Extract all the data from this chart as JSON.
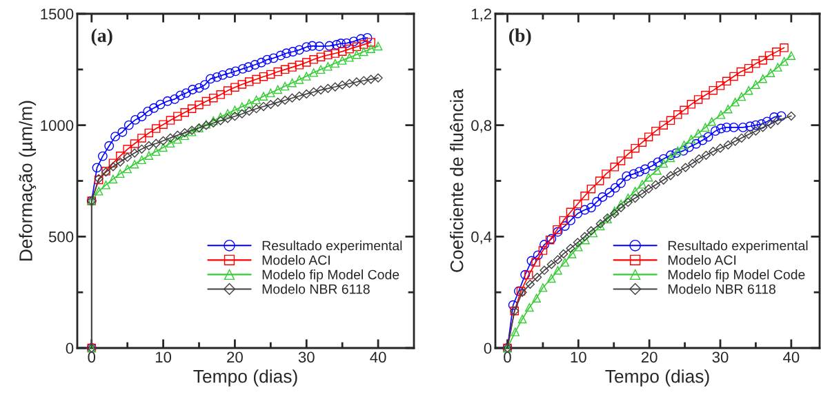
{
  "chart_data": [
    {
      "type": "line",
      "xlabel": "Tempo (dias)",
      "ylabel": "Deformação (µm/m)",
      "annotations": [
        "(a)"
      ],
      "xlim": [
        -2,
        45
      ],
      "ylim": [
        0,
        1500
      ],
      "xticks": [
        0,
        {
          "value": 5,
          "label": null
        },
        10,
        {
          "value": 15,
          "label": null
        },
        20,
        {
          "value": 25,
          "label": null
        },
        30,
        {
          "value": 35,
          "label": null
        },
        40
      ],
      "yticks": [
        0,
        {
          "value": 250,
          "label": null
        },
        500,
        {
          "value": 750,
          "label": null
        },
        1000,
        {
          "value": 1250,
          "label": null
        },
        1500
      ],
      "grid": false,
      "legend": "bottom right",
      "line_style": "solid",
      "series": [
        {
          "name": "Resultado experimental",
          "color": "#0000ff",
          "marker": "circle",
          "x": [
            0,
            0,
            0.75,
            1.55,
            2.45,
            3.3,
            4.3,
            5.2,
            6.1,
            7.0,
            7.85,
            8.7,
            9.6,
            10.6,
            11.6,
            12.4,
            13.2,
            14.1,
            15,
            15.8,
            16.6,
            17.5,
            18.3,
            19.3,
            20.1,
            21.1,
            21.9,
            22.8,
            23.7,
            24.5,
            25.4,
            26.4,
            27.2,
            28.1,
            29,
            30,
            30.8,
            31.8,
            33.2,
            34.2,
            34.8,
            35.6,
            36.6,
            37.6,
            38.5
          ],
          "values": [
            0,
            660,
            809,
            861,
            907,
            949,
            969,
            1000,
            1024,
            1039,
            1062,
            1077,
            1093,
            1108,
            1117,
            1134,
            1144,
            1160,
            1167,
            1181,
            1208,
            1216,
            1225,
            1234,
            1242,
            1253,
            1261,
            1271,
            1281,
            1294,
            1301,
            1313,
            1323,
            1330,
            1338,
            1351,
            1356,
            1354,
            1356,
            1361,
            1367,
            1368,
            1376,
            1387,
            1392
          ]
        },
        {
          "name": "Modelo ACI",
          "color": "#ff0000",
          "marker": "square",
          "x": [
            0,
            0,
            1,
            2,
            3,
            4,
            5,
            6,
            7,
            8,
            9,
            10,
            11,
            12,
            13,
            14,
            15,
            16,
            17,
            18,
            19,
            20,
            21,
            22,
            23,
            24,
            25,
            26,
            27,
            28,
            29,
            30,
            31,
            32,
            33,
            34,
            35,
            36,
            37,
            38,
            39
          ],
          "values": [
            0,
            660,
            755,
            794,
            830,
            862,
            892,
            917,
            942,
            965,
            985,
            1003,
            1022,
            1040,
            1057,
            1074,
            1091,
            1107,
            1122,
            1137,
            1155,
            1170,
            1183,
            1195,
            1206,
            1218,
            1228,
            1240,
            1250,
            1260,
            1270,
            1282,
            1295,
            1306,
            1315,
            1322,
            1331,
            1342,
            1352,
            1362,
            1372
          ]
        },
        {
          "name": "Modelo fip Model Code",
          "color": "#33cc33",
          "marker": "triangle",
          "x": [
            0,
            0,
            1,
            2,
            3,
            4,
            5,
            6,
            7,
            8,
            9,
            10,
            11,
            12,
            13,
            14,
            15,
            16,
            17,
            18,
            19,
            20,
            21,
            22,
            23,
            24,
            25,
            26,
            27,
            28,
            29,
            30,
            31,
            32,
            33,
            34,
            35,
            36,
            37,
            38,
            39,
            40
          ],
          "values": [
            0,
            660,
            704,
            732,
            758,
            783,
            804,
            825,
            845,
            864,
            882,
            900,
            919,
            936,
            953,
            970,
            987,
            1004,
            1020,
            1037,
            1053,
            1068,
            1083,
            1098,
            1114,
            1130,
            1145,
            1160,
            1175,
            1190,
            1205,
            1220,
            1236,
            1250,
            1264,
            1278,
            1291,
            1304,
            1317,
            1330,
            1343,
            1355
          ]
        },
        {
          "name": "Modelo NBR 6118",
          "color": "#404040",
          "marker": "diamond",
          "x": [
            0,
            0,
            1,
            2,
            3,
            4,
            5,
            6,
            7,
            8,
            9,
            10,
            11,
            12,
            13,
            14,
            15,
            16,
            17,
            18,
            19,
            20,
            21,
            22,
            23,
            24,
            25,
            26,
            27,
            28,
            29,
            30,
            31,
            32,
            33,
            34,
            35,
            36,
            37,
            38,
            39,
            40
          ],
          "values": [
            0,
            660,
            760,
            790,
            814,
            835,
            856,
            875,
            893,
            908,
            918,
            930,
            943,
            955,
            966,
            977,
            988,
            999,
            1010,
            1020,
            1030,
            1040,
            1051,
            1063,
            1074,
            1084,
            1093,
            1103,
            1112,
            1122,
            1131,
            1140,
            1149,
            1158,
            1165,
            1172,
            1180,
            1187,
            1194,
            1200,
            1206,
            1212
          ]
        }
      ]
    },
    {
      "type": "line",
      "xlabel": "Tempo (dias)",
      "ylabel": "Coeficiente de fluência",
      "annotations": [
        "(b)"
      ],
      "xlim": [
        -1.7,
        44
      ],
      "ylim": [
        0,
        1.2
      ],
      "xticks": [
        0,
        {
          "value": 5,
          "label": null
        },
        10,
        {
          "value": 15,
          "label": null
        },
        20,
        {
          "value": 25,
          "label": null
        },
        30,
        {
          "value": 35,
          "label": null
        },
        40
      ],
      "yticks": [
        0,
        {
          "value": 0.2,
          "label": null
        },
        {
          "value": 0.4,
          "label": "0,4"
        },
        {
          "value": 0.6,
          "label": null
        },
        {
          "value": 0.8,
          "label": "0,8"
        },
        {
          "value": 1.0,
          "label": null
        },
        {
          "value": 1.2,
          "label": "1,2"
        }
      ],
      "grid": false,
      "legend": "bottom right",
      "line_style": "solid",
      "series": [
        {
          "name": "Resultado experimental",
          "color": "#0000ff",
          "marker": "circle",
          "x": [
            0,
            0.8,
            1.6,
            2.5,
            3.4,
            4.3,
            5.2,
            6.2,
            7.1,
            8.1,
            8.9,
            9.9,
            10.9,
            11.8,
            12.6,
            13.4,
            14.4,
            15.2,
            16,
            16.8,
            17.8,
            18.6,
            19.4,
            20.4,
            21.2,
            22,
            23,
            23.8,
            24.8,
            25.6,
            26.6,
            27.5,
            28.3,
            29.3,
            30.1,
            30.9,
            31.9,
            33.2,
            34.2,
            35,
            35.8,
            36.6,
            37.6,
            38.6
          ],
          "values": [
            0,
            0.154,
            0.204,
            0.263,
            0.313,
            0.333,
            0.371,
            0.392,
            0.417,
            0.438,
            0.458,
            0.483,
            0.496,
            0.504,
            0.525,
            0.542,
            0.558,
            0.575,
            0.592,
            0.617,
            0.625,
            0.633,
            0.642,
            0.654,
            0.667,
            0.679,
            0.692,
            0.7,
            0.708,
            0.721,
            0.733,
            0.746,
            0.758,
            0.779,
            0.788,
            0.792,
            0.792,
            0.792,
            0.796,
            0.8,
            0.804,
            0.813,
            0.829,
            0.833
          ]
        },
        {
          "name": "Modelo ACI",
          "color": "#ff0000",
          "marker": "square",
          "x": [
            0,
            1,
            1.9,
            3,
            4,
            5,
            6,
            7,
            7.9,
            8.9,
            9.9,
            10.9,
            11.8,
            13,
            13.9,
            15.1,
            16,
            17,
            18,
            19,
            19.9,
            20.9,
            22,
            23,
            24,
            24.9,
            25.9,
            26.9,
            27.9,
            29,
            30,
            30.9,
            31.9,
            32.9,
            34,
            35,
            36,
            36.9,
            37.9,
            39
          ],
          "values": [
            0,
            0.133,
            0.204,
            0.262,
            0.308,
            0.35,
            0.388,
            0.425,
            0.458,
            0.488,
            0.517,
            0.546,
            0.571,
            0.6,
            0.625,
            0.65,
            0.672,
            0.696,
            0.717,
            0.738,
            0.758,
            0.779,
            0.8,
            0.817,
            0.838,
            0.854,
            0.875,
            0.892,
            0.908,
            0.925,
            0.942,
            0.958,
            0.975,
            0.992,
            1.004,
            1.021,
            1.033,
            1.05,
            1.063,
            1.078
          ]
        },
        {
          "name": "Modelo fip Model Code",
          "color": "#33cc33",
          "marker": "triangle",
          "x": [
            0,
            1.1,
            2.1,
            3.1,
            4.1,
            5,
            6.2,
            7.1,
            8.1,
            9.1,
            10,
            11,
            12.1,
            13.1,
            14.1,
            15.1,
            16,
            17,
            18,
            19,
            19.9,
            21.1,
            22,
            23,
            24,
            24.9,
            25.9,
            26.9,
            27.9,
            28.8,
            30.1,
            31.1,
            32.1,
            33,
            34,
            35,
            36,
            37.1,
            38.1,
            39,
            40
          ],
          "values": [
            0,
            0.058,
            0.104,
            0.146,
            0.179,
            0.217,
            0.25,
            0.279,
            0.308,
            0.338,
            0.363,
            0.388,
            0.413,
            0.438,
            0.463,
            0.492,
            0.517,
            0.539,
            0.563,
            0.588,
            0.613,
            0.638,
            0.663,
            0.683,
            0.708,
            0.729,
            0.75,
            0.771,
            0.792,
            0.813,
            0.838,
            0.858,
            0.883,
            0.903,
            0.925,
            0.946,
            0.967,
            0.988,
            1.008,
            1.029,
            1.05
          ]
        },
        {
          "name": "Modelo NBR 6118",
          "color": "#404040",
          "marker": "diamond",
          "x": [
            0,
            1,
            2.1,
            3.2,
            4.2,
            5.2,
            6.2,
            7.1,
            7.9,
            8.9,
            9.9,
            10.9,
            11.8,
            13.1,
            14.1,
            15.1,
            16,
            17,
            18,
            19,
            19.9,
            20.9,
            22,
            23,
            24,
            25.1,
            26.1,
            27,
            28,
            29,
            30,
            31.1,
            32.1,
            33,
            34,
            35,
            36,
            37.1,
            38.1,
            40
          ],
          "values": [
            0,
            0.133,
            0.2,
            0.229,
            0.254,
            0.279,
            0.3,
            0.317,
            0.338,
            0.358,
            0.379,
            0.4,
            0.421,
            0.446,
            0.467,
            0.483,
            0.504,
            0.523,
            0.538,
            0.554,
            0.571,
            0.586,
            0.603,
            0.619,
            0.633,
            0.648,
            0.663,
            0.679,
            0.692,
            0.706,
            0.717,
            0.729,
            0.742,
            0.754,
            0.767,
            0.779,
            0.792,
            0.804,
            0.817,
            0.833
          ]
        }
      ]
    }
  ]
}
